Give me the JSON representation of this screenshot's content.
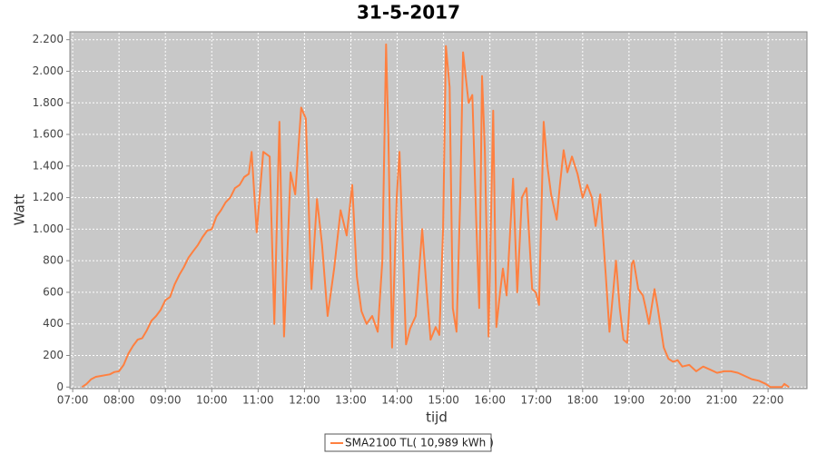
{
  "chart_data": {
    "type": "line",
    "title": "31-5-2017",
    "x_label": "tijd",
    "y_label": "Watt",
    "x": [
      7.2,
      7.3,
      7.4,
      7.5,
      7.6,
      7.7,
      7.8,
      7.9,
      8.0,
      8.1,
      8.2,
      8.3,
      8.4,
      8.5,
      8.6,
      8.7,
      8.8,
      8.9,
      9.0,
      9.1,
      9.2,
      9.3,
      9.4,
      9.5,
      9.6,
      9.7,
      9.8,
      9.9,
      10.0,
      10.1,
      10.2,
      10.3,
      10.4,
      10.5,
      10.6,
      10.7,
      10.8,
      10.86,
      10.97,
      11.11,
      11.25,
      11.35,
      11.46,
      11.56,
      11.7,
      11.8,
      11.93,
      12.03,
      12.15,
      12.27,
      12.38,
      12.5,
      12.64,
      12.78,
      12.91,
      13.03,
      13.13,
      13.23,
      13.34,
      13.46,
      13.58,
      13.68,
      13.76,
      13.81,
      13.89,
      13.99,
      14.05,
      14.13,
      14.19,
      14.28,
      14.4,
      14.54,
      14.64,
      14.72,
      14.83,
      14.91,
      14.99,
      15.05,
      15.13,
      15.2,
      15.28,
      15.36,
      15.42,
      15.54,
      15.62,
      15.71,
      15.77,
      15.83,
      15.89,
      15.97,
      16.07,
      16.14,
      16.22,
      16.28,
      16.36,
      16.5,
      16.59,
      16.69,
      16.79,
      16.91,
      16.99,
      17.06,
      17.16,
      17.24,
      17.32,
      17.44,
      17.51,
      17.59,
      17.67,
      17.77,
      17.89,
      18.0,
      18.1,
      18.2,
      18.28,
      18.38,
      18.5,
      18.58,
      18.72,
      18.8,
      18.88,
      18.96,
      19.06,
      19.1,
      19.2,
      19.3,
      19.36,
      19.43,
      19.55,
      19.62,
      19.75,
      19.85,
      19.95,
      20.05,
      20.15,
      20.3,
      20.45,
      20.6,
      20.75,
      20.9,
      21.05,
      21.2,
      21.35,
      21.5,
      21.65,
      21.8,
      21.95,
      22.05,
      22.3,
      22.35,
      22.45
    ],
    "series": [
      {
        "name": "SMA2100 TL( 10,989 kWh )",
        "color": "#ff8040",
        "values": [
          0,
          20,
          50,
          65,
          70,
          75,
          80,
          95,
          100,
          140,
          210,
          260,
          300,
          310,
          360,
          420,
          450,
          490,
          550,
          570,
          650,
          710,
          760,
          820,
          860,
          900,
          950,
          990,
          1000,
          1080,
          1120,
          1170,
          1200,
          1260,
          1280,
          1330,
          1350,
          1490,
          980,
          1490,
          1460,
          400,
          1680,
          320,
          1360,
          1220,
          1770,
          1700,
          620,
          1190,
          900,
          450,
          750,
          1120,
          960,
          1280,
          700,
          480,
          400,
          450,
          350,
          800,
          2170,
          1600,
          250,
          1200,
          1490,
          800,
          270,
          370,
          450,
          1000,
          600,
          300,
          380,
          330,
          1000,
          2160,
          1900,
          500,
          350,
          1200,
          2120,
          1800,
          1850,
          1000,
          500,
          1970,
          1500,
          320,
          1750,
          380,
          600,
          750,
          580,
          1320,
          600,
          1200,
          1260,
          620,
          600,
          520,
          1680,
          1400,
          1220,
          1060,
          1280,
          1500,
          1360,
          1460,
          1350,
          1200,
          1280,
          1200,
          1020,
          1220,
          700,
          350,
          800,
          500,
          300,
          280,
          780,
          800,
          620,
          580,
          500,
          400,
          620,
          500,
          250,
          180,
          160,
          170,
          130,
          140,
          100,
          130,
          110,
          90,
          100,
          100,
          90,
          70,
          50,
          40,
          20,
          0,
          0,
          20,
          0
        ]
      }
    ],
    "xlim": [
      6.94,
      22.84
    ],
    "xticks": [
      {
        "value": 7,
        "label": "07:00"
      },
      {
        "value": 8,
        "label": "08:00"
      },
      {
        "value": 9,
        "label": "09:00"
      },
      {
        "value": 10,
        "label": "10:00"
      },
      {
        "value": 11,
        "label": "11:00"
      },
      {
        "value": 12,
        "label": "12:00"
      },
      {
        "value": 13,
        "label": "13:00"
      },
      {
        "value": 14,
        "label": "14:00"
      },
      {
        "value": 15,
        "label": "15:00"
      },
      {
        "value": 16,
        "label": "16:00"
      },
      {
        "value": 17,
        "label": "17:00"
      },
      {
        "value": 18,
        "label": "18:00"
      },
      {
        "value": 19,
        "label": "19:00"
      },
      {
        "value": 20,
        "label": "20:00"
      },
      {
        "value": 21,
        "label": "21:00"
      },
      {
        "value": 22,
        "label": "22:00"
      }
    ],
    "ylim": [
      -10,
      2250
    ],
    "yticks": [
      0,
      200,
      400,
      600,
      800,
      {
        "value": 1000,
        "label": "1.000"
      },
      {
        "value": 1200,
        "label": "1.200"
      },
      {
        "value": 1400,
        "label": "1.400"
      },
      {
        "value": 1600,
        "label": "1.600"
      },
      {
        "value": 1800,
        "label": "1.800"
      },
      {
        "value": 2000,
        "label": "2.000"
      },
      {
        "value": 2200,
        "label": "2.200"
      }
    ],
    "grid": true,
    "legend": "bottom"
  }
}
